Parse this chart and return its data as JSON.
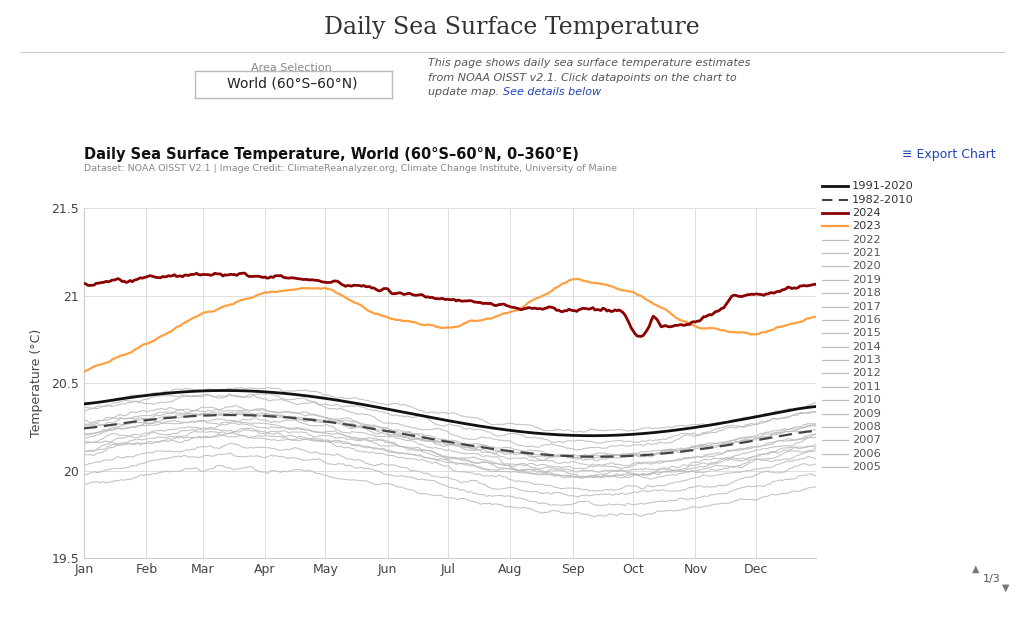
{
  "title_main": "Daily Sea Surface Temperature",
  "chart_title": "Daily Sea Surface Temperature, World (60°S–60°N, 0–360°E)",
  "dataset_credit": "Dataset: NOAA OISST V2.1 | Image Credit: ClimateReanalyzer.org, Climate Change Institute, University of Maine",
  "area_label": "Area Selection",
  "area_value": "World (60°S–60°N)",
  "info_line1": "This page shows daily sea surface temperature estimates",
  "info_line2": "from NOAA OISST v2.1. Click datapoints on the chart to",
  "info_line3": "update map.",
  "info_link": "See details below",
  "info_line3b": ".",
  "export_label": "≡ Export Chart",
  "ylabel": "Temperature (°C)",
  "ylim": [
    19.5,
    21.5
  ],
  "yticks": [
    19.5,
    20.0,
    20.5,
    21.0,
    21.5
  ],
  "months": [
    "Jan",
    "Feb",
    "Mar",
    "Apr",
    "May",
    "Jun",
    "Jul",
    "Aug",
    "Sep",
    "Oct",
    "Nov",
    "Dec"
  ],
  "color_2024": "#8B0000",
  "color_2023": "#FFA040",
  "color_1991_2020": "#111111",
  "color_1982_2010": "#444444",
  "color_gray": "#BBBBBB",
  "pagination": "1/3",
  "legend_years": [
    "2022",
    "2021",
    "2020",
    "2019",
    "2018",
    "2017",
    "2016",
    "2015",
    "2014",
    "2013",
    "2012",
    "2011",
    "2010",
    "2009",
    "2008",
    "2007",
    "2006",
    "2005"
  ]
}
